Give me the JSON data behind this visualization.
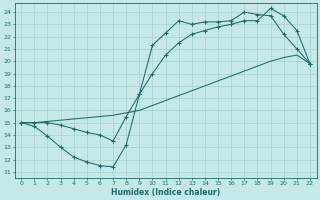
{
  "xlabel": "Humidex (Indice chaleur)",
  "bg_color": "#c5e8e8",
  "line_color": "#1a6b6b",
  "grid_color": "#aacece",
  "xlim": [
    -0.5,
    22.5
  ],
  "ylim": [
    10.5,
    24.7
  ],
  "xticks": [
    0,
    1,
    2,
    3,
    4,
    5,
    6,
    7,
    8,
    9,
    10,
    11,
    12,
    13,
    14,
    15,
    16,
    17,
    18,
    19,
    20,
    21,
    22
  ],
  "yticks": [
    11,
    12,
    13,
    14,
    15,
    16,
    17,
    18,
    19,
    20,
    21,
    22,
    23,
    24
  ],
  "line1_x": [
    0,
    1,
    2,
    3,
    4,
    5,
    6,
    7,
    8,
    9,
    10,
    11,
    12,
    13,
    14,
    15,
    16,
    17,
    18,
    19,
    20,
    21,
    22
  ],
  "line1_y": [
    15.0,
    14.7,
    13.9,
    13.0,
    12.2,
    11.8,
    11.5,
    11.4,
    13.2,
    17.3,
    21.3,
    22.3,
    23.3,
    23.0,
    23.2,
    23.2,
    23.3,
    24.0,
    23.8,
    23.7,
    22.2,
    21.0,
    19.8
  ],
  "line2_x": [
    0,
    1,
    2,
    3,
    4,
    5,
    6,
    7,
    8,
    9,
    10,
    11,
    12,
    13,
    14,
    15,
    16,
    17,
    18,
    19,
    20,
    21,
    22
  ],
  "line2_y": [
    15.0,
    15.0,
    15.1,
    15.2,
    15.3,
    15.4,
    15.5,
    15.6,
    15.8,
    16.0,
    16.4,
    16.8,
    17.2,
    17.6,
    18.0,
    18.4,
    18.8,
    19.2,
    19.6,
    20.0,
    20.3,
    20.5,
    19.8
  ],
  "line3_x": [
    0,
    1,
    2,
    3,
    4,
    5,
    6,
    7,
    8,
    9,
    10,
    11,
    12,
    13,
    14,
    15,
    16,
    17,
    18,
    19,
    20,
    21,
    22
  ],
  "line3_y": [
    15.0,
    15.0,
    15.0,
    14.8,
    14.5,
    14.2,
    14.0,
    13.5,
    15.5,
    17.3,
    19.0,
    20.5,
    21.5,
    22.2,
    22.5,
    22.8,
    23.0,
    23.3,
    23.3,
    24.3,
    23.7,
    22.5,
    19.8
  ]
}
